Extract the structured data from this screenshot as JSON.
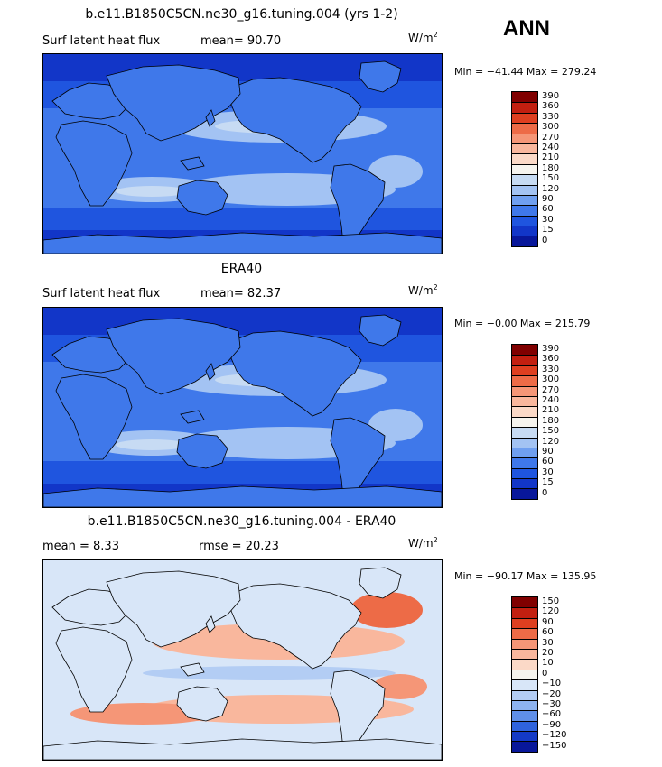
{
  "season": "ANN",
  "panels": [
    {
      "title": "b.e11.B1850C5CN.ne30_g16.tuning.004 (yrs 1-2)",
      "left_text": "Surf latent heat flux",
      "stat_text": "mean=  90.70",
      "units": "W/m",
      "units_exp": "2",
      "minmax": "Min = −41.44 Max = 279.24",
      "levels": [
        "390",
        "360",
        "330",
        "300",
        "270",
        "240",
        "210",
        "180",
        "150",
        "120",
        "90",
        "60",
        "30",
        "15",
        "0"
      ],
      "colors": [
        "#800000",
        "#c21f10",
        "#de3f20",
        "#ed6b47",
        "#f59677",
        "#f9b79d",
        "#fbd9c7",
        "#f6f4ee",
        "#c7dbf3",
        "#a3c3f3",
        "#6f9ff0",
        "#3f78ea",
        "#1f55df",
        "#1236c8",
        "#08179a"
      ],
      "palette": "full"
    },
    {
      "title": "ERA40",
      "left_text": "Surf latent heat flux",
      "stat_text": "mean=  82.37",
      "units": "W/m",
      "units_exp": "2",
      "minmax": "Min =  −0.00 Max = 215.79",
      "levels": [
        "390",
        "360",
        "330",
        "300",
        "270",
        "240",
        "210",
        "180",
        "150",
        "120",
        "90",
        "60",
        "30",
        "15",
        "0"
      ],
      "colors": [
        "#800000",
        "#c21f10",
        "#de3f20",
        "#ed6b47",
        "#f59677",
        "#f9b79d",
        "#fbd9c7",
        "#f6f4ee",
        "#c7dbf3",
        "#a3c3f3",
        "#6f9ff0",
        "#3f78ea",
        "#1f55df",
        "#1236c8",
        "#08179a"
      ],
      "palette": "full"
    },
    {
      "title": "b.e11.B1850C5CN.ne30_g16.tuning.004 - ERA40",
      "left_text": "mean =   8.33",
      "stat_text": "rmse =  20.23",
      "units": "W/m",
      "units_exp": "2",
      "minmax": "Min = −90.17 Max = 135.95",
      "levels": [
        "150",
        "120",
        "90",
        "60",
        "30",
        "20",
        "10",
        "0",
        "−10",
        "−20",
        "−30",
        "−60",
        "−90",
        "−120",
        "−150"
      ],
      "colors": [
        "#800000",
        "#c21f10",
        "#de3f20",
        "#ed6b47",
        "#f59677",
        "#f9b79d",
        "#fbd9c7",
        "#f6f4ee",
        "#d8e6f8",
        "#b3cdf4",
        "#8db3f0",
        "#5f8fe9",
        "#2f63dd",
        "#143ac6",
        "#08179a"
      ],
      "palette": "diff"
    }
  ]
}
